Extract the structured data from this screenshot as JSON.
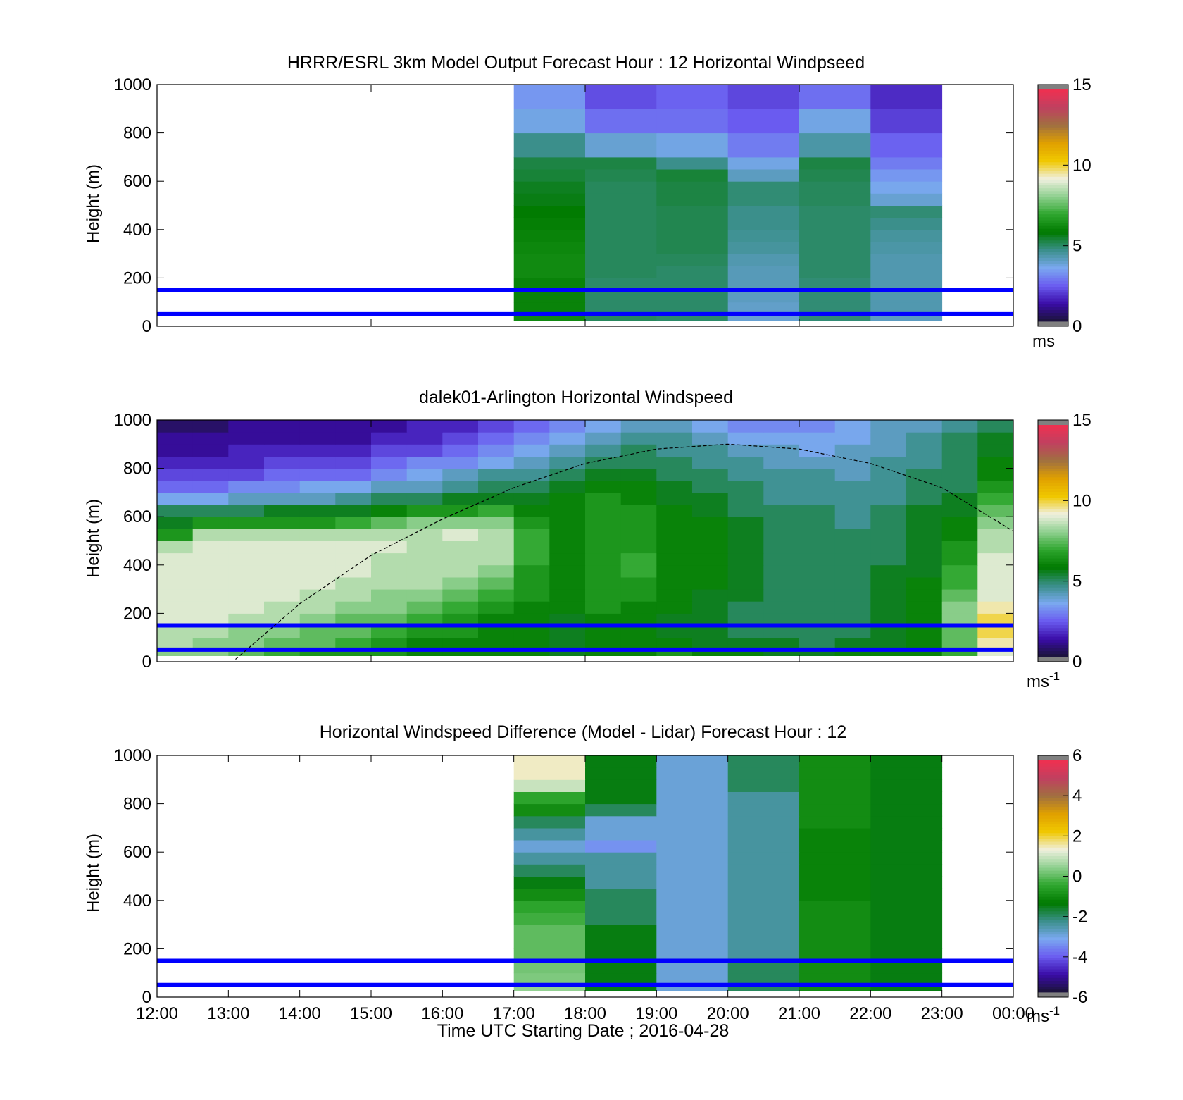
{
  "panels": [
    {
      "title": "HRRR/ESRL 3km Model Output   Forecast Hour : 12 Horizontal Windpseed",
      "ylabel": "Height (m)",
      "unit": "ms",
      "unit_sup": "",
      "colorbar": {
        "min": 0,
        "max": 15,
        "ticks": [
          "0",
          "5",
          "10",
          "15"
        ]
      }
    },
    {
      "title": "dalek01-Arlington  Horizontal Windspeed",
      "ylabel": "Height (m)",
      "unit": "ms",
      "unit_sup": "-1",
      "colorbar": {
        "min": 0,
        "max": 15,
        "ticks": [
          "0",
          "5",
          "10",
          "15"
        ]
      }
    },
    {
      "title": "Horizontal Windspeed Difference (Model - Lidar) Forecast Hour : 12",
      "ylabel": "Height (m)",
      "unit": "ms",
      "unit_sup": "-1",
      "colorbar": {
        "min": -6,
        "max": 6,
        "ticks": [
          "-6",
          "-4",
          "-2",
          "0",
          "2",
          "4",
          "6"
        ]
      }
    }
  ],
  "y_ticks": [
    "0",
    "200",
    "400",
    "600",
    "800",
    "1000"
  ],
  "x_ticks": [
    "12:00",
    "13:00",
    "14:00",
    "15:00",
    "16:00",
    "17:00",
    "18:00",
    "19:00",
    "20:00",
    "21:00",
    "22:00",
    "23:00",
    "00:00"
  ],
  "xlabel": "Time UTC  Starting Date ; 2016-04-28",
  "colors": {
    "reference_lines": "#0000ff",
    "colormap_speed": [
      "#1a1436",
      "#3a0ca8",
      "#6a5cf0",
      "#7aa8f0",
      "#3a8f8a",
      "#007a00",
      "#2ea62e",
      "#8fd08f",
      "#f0f0e0",
      "#f0c800",
      "#e0a000",
      "#a07040",
      "#c04060",
      "#f03050"
    ],
    "colormap_diff": [
      "#1a1436",
      "#3a0ca8",
      "#6a5cf0",
      "#7aa8f0",
      "#3a8f8a",
      "#007a00",
      "#2ea62e",
      "#8fd08f",
      "#f0f0e0",
      "#f0c800",
      "#e0a000",
      "#a07040",
      "#c04060",
      "#f03050"
    ]
  },
  "chart_data": [
    {
      "type": "heatmap",
      "title": "HRRR/ESRL 3km Model Output   Forecast Hour : 12 Horizontal Windpseed",
      "xlabel": "",
      "ylabel": "Height (m)",
      "xlim": [
        12,
        24
      ],
      "ylim": [
        0,
        1000
      ],
      "clim": [
        0,
        15
      ],
      "column_times": [
        17,
        18,
        19,
        20,
        21,
        22
      ],
      "column_width_hours": 1,
      "row_heights": [
        50,
        100,
        150,
        200,
        250,
        300,
        350,
        400,
        450,
        500,
        550,
        600,
        650,
        700,
        800,
        900,
        1000
      ],
      "values": [
        [
          6.2,
          5.0,
          4.9,
          3.8,
          4.8,
          4.0
        ],
        [
          6.0,
          4.9,
          4.9,
          3.9,
          4.8,
          4.2
        ],
        [
          6.0,
          4.9,
          4.9,
          4.0,
          4.8,
          4.2
        ],
        [
          6.0,
          4.9,
          4.9,
          4.1,
          4.8,
          4.2
        ],
        [
          6.2,
          5.0,
          4.9,
          4.1,
          4.9,
          4.2
        ],
        [
          6.2,
          5.0,
          5.0,
          4.2,
          4.9,
          4.2
        ],
        [
          6.1,
          5.0,
          5.1,
          4.4,
          4.9,
          4.3
        ],
        [
          6.0,
          5.0,
          5.1,
          4.5,
          4.9,
          4.4
        ],
        [
          5.9,
          5.0,
          5.1,
          4.6,
          4.9,
          4.6
        ],
        [
          5.8,
          5.0,
          5.1,
          4.6,
          4.9,
          4.8
        ],
        [
          5.6,
          5.0,
          5.2,
          4.8,
          5.0,
          3.8
        ],
        [
          5.5,
          5.0,
          5.2,
          4.8,
          5.0,
          3.5
        ],
        [
          5.3,
          5.1,
          5.3,
          4.0,
          5.1,
          3.2
        ],
        [
          5.2,
          5.2,
          4.6,
          3.6,
          5.2,
          2.8
        ],
        [
          4.6,
          3.8,
          3.6,
          2.8,
          4.3,
          2.4
        ],
        [
          3.6,
          2.6,
          2.6,
          2.3,
          3.6,
          1.9
        ],
        [
          3.2,
          2.1,
          2.4,
          2.0,
          2.6,
          1.6
        ]
      ],
      "reference_lines_m": [
        50,
        150
      ]
    },
    {
      "type": "heatmap",
      "title": "dalek01-Arlington  Horizontal Windspeed",
      "xlabel": "",
      "ylabel": "Height (m)",
      "xlim": [
        12,
        24
      ],
      "ylim": [
        0,
        1000
      ],
      "clim": [
        0,
        15
      ],
      "column_times": [
        12,
        12.5,
        13,
        13.5,
        14,
        14.5,
        15,
        15.5,
        16,
        16.5,
        17,
        17.5,
        18,
        18.5,
        19,
        19.5,
        20,
        20.5,
        21,
        21.5,
        22,
        22.5,
        23,
        23.5
      ],
      "column_width_hours": 0.5,
      "row_heights": [
        50,
        100,
        150,
        200,
        250,
        300,
        350,
        400,
        450,
        500,
        550,
        600,
        650,
        700,
        750,
        800,
        850,
        900,
        950,
        1000
      ],
      "values": [
        [
          8.0,
          8.0,
          7.5,
          7.0,
          6.5,
          6.5,
          6.5,
          6.0,
          6.0,
          6.0,
          6.0,
          5.5,
          6.0,
          6.0,
          6.5,
          6.0,
          6.0,
          5.5,
          5.5,
          6.0,
          6.0,
          6.0,
          7.0,
          9.0
        ],
        [
          8.5,
          8.0,
          8.0,
          7.5,
          7.5,
          7.0,
          6.5,
          6.0,
          6.0,
          6.0,
          6.0,
          5.5,
          6.0,
          6.0,
          6.0,
          5.5,
          5.5,
          5.5,
          5.0,
          5.5,
          5.5,
          6.0,
          7.5,
          9.5
        ],
        [
          8.5,
          8.5,
          8.0,
          8.0,
          7.5,
          7.5,
          7.0,
          6.5,
          6.5,
          6.0,
          6.0,
          5.5,
          6.0,
          6.0,
          5.5,
          5.5,
          5.0,
          5.0,
          5.0,
          5.0,
          5.5,
          6.0,
          7.5,
          10.0
        ],
        [
          9.0,
          9.0,
          8.5,
          8.5,
          8.0,
          7.5,
          7.5,
          7.0,
          6.5,
          6.0,
          6.0,
          5.5,
          6.0,
          6.0,
          5.5,
          5.5,
          5.0,
          5.0,
          5.0,
          5.0,
          5.5,
          6.0,
          8.0,
          10.0
        ],
        [
          9.0,
          9.0,
          9.0,
          8.5,
          8.5,
          8.0,
          8.0,
          7.5,
          7.0,
          6.5,
          6.0,
          6.0,
          6.5,
          6.0,
          6.0,
          5.5,
          5.0,
          5.0,
          5.0,
          5.0,
          5.5,
          6.0,
          8.0,
          9.5
        ],
        [
          9.0,
          9.0,
          9.0,
          9.0,
          8.5,
          8.5,
          8.0,
          8.0,
          7.5,
          7.0,
          6.5,
          6.0,
          6.5,
          6.5,
          6.0,
          5.5,
          5.5,
          5.0,
          5.0,
          5.0,
          5.5,
          6.0,
          7.5,
          9.0
        ],
        [
          9.0,
          9.0,
          9.0,
          9.0,
          9.0,
          8.5,
          8.5,
          8.5,
          8.0,
          7.5,
          6.5,
          6.0,
          6.5,
          6.5,
          6.0,
          6.0,
          5.5,
          5.0,
          5.0,
          5.0,
          5.5,
          6.0,
          7.0,
          9.0
        ],
        [
          9.0,
          9.0,
          9.0,
          9.0,
          9.0,
          9.0,
          8.5,
          8.5,
          8.5,
          8.0,
          6.5,
          6.0,
          6.5,
          7.0,
          6.0,
          6.0,
          5.5,
          5.0,
          5.0,
          5.0,
          5.5,
          5.5,
          7.0,
          9.0
        ],
        [
          9.0,
          9.0,
          9.0,
          9.0,
          9.0,
          9.0,
          8.5,
          8.5,
          8.5,
          8.5,
          7.0,
          6.0,
          6.5,
          7.0,
          6.0,
          6.0,
          5.5,
          5.0,
          5.0,
          5.0,
          5.0,
          5.5,
          6.5,
          9.0
        ],
        [
          8.5,
          9.0,
          9.0,
          9.0,
          9.0,
          9.0,
          9.0,
          8.5,
          8.5,
          8.5,
          7.0,
          6.0,
          6.5,
          6.5,
          6.0,
          6.0,
          5.5,
          5.0,
          5.0,
          5.0,
          5.0,
          5.5,
          6.5,
          8.5
        ],
        [
          6.5,
          8.5,
          8.5,
          8.5,
          8.5,
          8.5,
          8.5,
          8.5,
          9.0,
          8.5,
          7.0,
          6.0,
          6.5,
          6.5,
          6.0,
          6.0,
          5.5,
          5.0,
          5.0,
          5.0,
          5.0,
          5.5,
          6.0,
          8.5
        ],
        [
          5.5,
          6.5,
          6.5,
          6.5,
          6.5,
          7.0,
          7.5,
          8.0,
          8.0,
          8.0,
          6.5,
          6.0,
          6.5,
          6.5,
          6.0,
          6.0,
          5.5,
          5.0,
          5.0,
          4.5,
          5.0,
          5.5,
          6.0,
          8.0
        ],
        [
          5.0,
          5.0,
          5.0,
          5.5,
          5.5,
          5.5,
          6.0,
          6.5,
          6.5,
          7.0,
          6.0,
          6.0,
          6.5,
          6.5,
          6.0,
          5.5,
          5.0,
          5.0,
          5.0,
          4.5,
          5.0,
          5.5,
          5.5,
          7.5
        ],
        [
          3.5,
          3.5,
          4.0,
          4.0,
          4.0,
          4.5,
          5.0,
          5.0,
          5.5,
          5.5,
          5.5,
          6.0,
          6.5,
          6.0,
          5.5,
          5.5,
          5.0,
          4.5,
          4.5,
          4.5,
          4.5,
          5.0,
          5.5,
          7.0
        ],
        [
          2.5,
          2.5,
          3.0,
          3.0,
          3.5,
          3.5,
          4.0,
          4.0,
          4.5,
          5.0,
          5.0,
          5.5,
          6.0,
          6.0,
          5.5,
          5.0,
          5.0,
          4.5,
          4.5,
          4.5,
          4.5,
          5.0,
          5.0,
          6.5
        ],
        [
          2.0,
          2.0,
          2.0,
          2.5,
          2.5,
          2.5,
          3.0,
          3.5,
          4.0,
          4.5,
          4.5,
          5.0,
          5.5,
          5.5,
          5.0,
          5.0,
          4.5,
          4.5,
          4.5,
          4.0,
          4.5,
          5.0,
          5.0,
          6.0
        ],
        [
          1.5,
          1.5,
          1.5,
          2.0,
          2.0,
          2.0,
          2.5,
          3.0,
          3.0,
          3.5,
          4.0,
          4.5,
          5.0,
          5.0,
          5.0,
          4.5,
          4.5,
          4.0,
          4.0,
          4.0,
          4.5,
          4.5,
          5.0,
          6.0
        ],
        [
          1.0,
          1.0,
          1.5,
          1.5,
          1.5,
          1.5,
          2.0,
          2.0,
          2.5,
          3.0,
          3.5,
          4.0,
          4.5,
          5.0,
          4.5,
          4.5,
          4.0,
          4.0,
          3.5,
          4.0,
          4.0,
          4.5,
          5.0,
          5.5
        ],
        [
          1.0,
          1.0,
          1.0,
          1.0,
          1.0,
          1.0,
          1.5,
          1.5,
          2.0,
          2.5,
          3.0,
          3.5,
          4.0,
          4.5,
          4.5,
          4.0,
          3.5,
          3.5,
          3.5,
          3.5,
          4.0,
          4.5,
          5.0,
          5.5
        ],
        [
          0.5,
          0.5,
          1.0,
          1.0,
          1.0,
          1.0,
          1.0,
          1.5,
          1.5,
          2.0,
          2.5,
          3.0,
          3.5,
          4.0,
          4.0,
          3.5,
          3.0,
          3.0,
          3.0,
          3.5,
          4.0,
          4.0,
          4.5,
          5.0
        ]
      ],
      "reference_lines_m": [
        50,
        150
      ],
      "boundary_layer_curve": {
        "x": [
          13.1,
          14,
          15,
          16,
          17,
          18,
          19,
          20,
          21,
          22,
          23,
          24
        ],
        "y": [
          10,
          240,
          440,
          590,
          720,
          820,
          880,
          900,
          880,
          820,
          720,
          540
        ]
      }
    },
    {
      "type": "heatmap",
      "title": "Horizontal Windspeed Difference (Model - Lidar) Forecast Hour : 12",
      "xlabel": "Time UTC  Starting Date ; 2016-04-28",
      "ylabel": "Height (m)",
      "xlim": [
        12,
        24
      ],
      "ylim": [
        0,
        1000
      ],
      "clim": [
        -6,
        6
      ],
      "column_times": [
        17,
        18,
        19,
        20,
        21,
        22
      ],
      "column_width_hours": 1,
      "row_heights": [
        50,
        100,
        150,
        200,
        250,
        300,
        350,
        400,
        450,
        500,
        550,
        600,
        650,
        700,
        750,
        800,
        850,
        900,
        950,
        1000
      ],
      "values": [
        [
          0.5,
          -1.5,
          -3.0,
          -2.0,
          -1.0,
          -1.5
        ],
        [
          0.3,
          -1.5,
          -3.0,
          -2.0,
          -1.0,
          -1.5
        ],
        [
          0.2,
          -1.5,
          -3.0,
          -2.0,
          -1.0,
          -1.5
        ],
        [
          0.0,
          -1.5,
          -3.0,
          -2.5,
          -1.0,
          -1.5
        ],
        [
          0.0,
          -1.5,
          -3.0,
          -2.5,
          -1.0,
          -1.5
        ],
        [
          0.0,
          -1.5,
          -3.0,
          -2.5,
          -1.0,
          -1.5
        ],
        [
          -0.3,
          -2.0,
          -3.0,
          -2.5,
          -1.0,
          -1.5
        ],
        [
          -0.5,
          -2.0,
          -3.0,
          -2.5,
          -1.0,
          -1.5
        ],
        [
          -1.0,
          -2.0,
          -3.0,
          -2.5,
          -1.2,
          -1.5
        ],
        [
          -1.5,
          -2.5,
          -3.0,
          -2.5,
          -1.2,
          -1.5
        ],
        [
          -2.0,
          -2.5,
          -3.0,
          -2.5,
          -1.2,
          -1.5
        ],
        [
          -2.5,
          -2.5,
          -3.0,
          -2.5,
          -1.2,
          -1.5
        ],
        [
          -3.0,
          -3.5,
          -3.0,
          -2.5,
          -1.2,
          -1.5
        ],
        [
          -2.5,
          -3.0,
          -3.0,
          -2.5,
          -1.2,
          -1.5
        ],
        [
          -2.0,
          -3.0,
          -3.0,
          -2.5,
          -1.0,
          -1.5
        ],
        [
          -1.0,
          -2.0,
          -3.0,
          -2.5,
          -1.0,
          -1.5
        ],
        [
          -0.5,
          -1.5,
          -3.0,
          -2.5,
          -1.0,
          -1.5
        ],
        [
          1.0,
          -1.5,
          -3.0,
          -2.0,
          -1.0,
          -1.5
        ],
        [
          1.5,
          -1.5,
          -3.0,
          -2.0,
          -1.0,
          -1.5
        ],
        [
          1.5,
          -1.5,
          -3.0,
          -2.0,
          -1.0,
          -1.5
        ]
      ],
      "reference_lines_m": [
        50,
        150
      ]
    }
  ]
}
